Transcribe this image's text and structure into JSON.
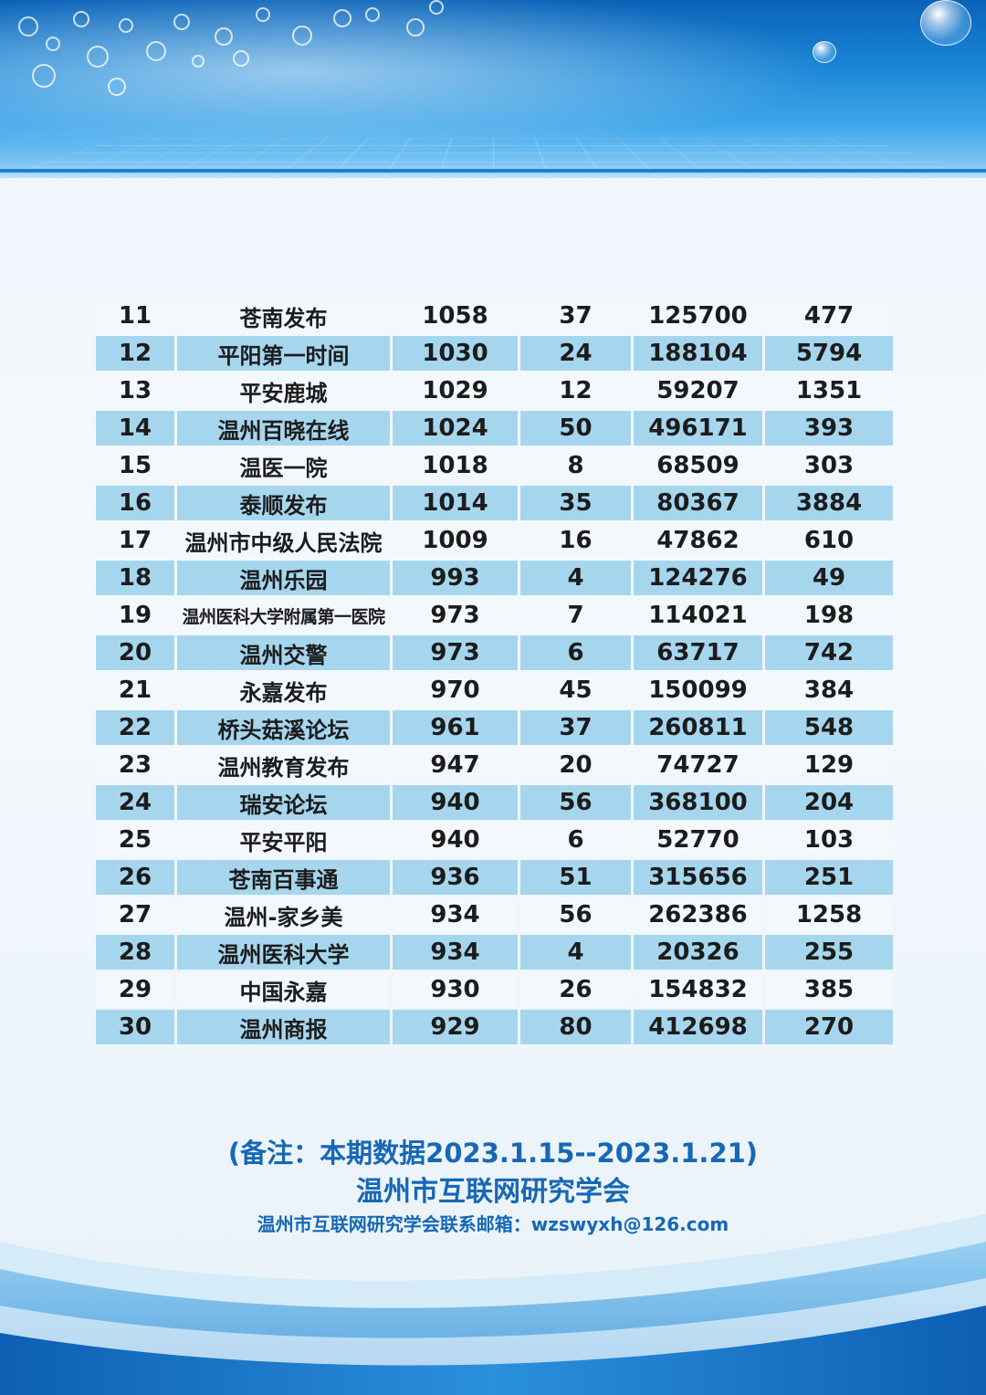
{
  "rows": [
    {
      "rank": "11",
      "name": "苍南发布",
      "c1": "1058",
      "c2": "37",
      "c3": "125700",
      "c4": "477"
    },
    {
      "rank": "12",
      "name": "平阳第一时间",
      "c1": "1030",
      "c2": "24",
      "c3": "188104",
      "c4": "5794"
    },
    {
      "rank": "13",
      "name": "平安鹿城",
      "c1": "1029",
      "c2": "12",
      "c3": "59207",
      "c4": "1351"
    },
    {
      "rank": "14",
      "name": "温州百晓在线",
      "c1": "1024",
      "c2": "50",
      "c3": "496171",
      "c4": "393"
    },
    {
      "rank": "15",
      "name": "温医一院",
      "c1": "1018",
      "c2": "8",
      "c3": "68509",
      "c4": "303"
    },
    {
      "rank": "16",
      "name": "泰顺发布",
      "c1": "1014",
      "c2": "35",
      "c3": "80367",
      "c4": "3884"
    },
    {
      "rank": "17",
      "name": "温州市中级人民法院",
      "c1": "1009",
      "c2": "16",
      "c3": "47862",
      "c4": "610"
    },
    {
      "rank": "18",
      "name": "温州乐园",
      "c1": "993",
      "c2": "4",
      "c3": "124276",
      "c4": "49"
    },
    {
      "rank": "19",
      "name": "温州医科大学附属第一医院",
      "c1": "973",
      "c2": "7",
      "c3": "114021",
      "c4": "198"
    },
    {
      "rank": "20",
      "name": "温州交警",
      "c1": "973",
      "c2": "6",
      "c3": "63717",
      "c4": "742"
    },
    {
      "rank": "21",
      "name": "永嘉发布",
      "c1": "970",
      "c2": "45",
      "c3": "150099",
      "c4": "384"
    },
    {
      "rank": "22",
      "name": "桥头菇溪论坛",
      "c1": "961",
      "c2": "37",
      "c3": "260811",
      "c4": "548"
    },
    {
      "rank": "23",
      "name": "温州教育发布",
      "c1": "947",
      "c2": "20",
      "c3": "74727",
      "c4": "129"
    },
    {
      "rank": "24",
      "name": "瑞安论坛",
      "c1": "940",
      "c2": "56",
      "c3": "368100",
      "c4": "204"
    },
    {
      "rank": "25",
      "name": "平安平阳",
      "c1": "940",
      "c2": "6",
      "c3": "52770",
      "c4": "103"
    },
    {
      "rank": "26",
      "name": "苍南百事通",
      "c1": "936",
      "c2": "51",
      "c3": "315656",
      "c4": "251"
    },
    {
      "rank": "27",
      "name": "温州-家乡美",
      "c1": "934",
      "c2": "56",
      "c3": "262386",
      "c4": "1258"
    },
    {
      "rank": "28",
      "name": "温州医科大学",
      "c1": "934",
      "c2": "4",
      "c3": "20326",
      "c4": "255"
    },
    {
      "rank": "29",
      "name": "中国永嘉",
      "c1": "930",
      "c2": "26",
      "c3": "154832",
      "c4": "385"
    },
    {
      "rank": "30",
      "name": "温州商报",
      "c1": "929",
      "c2": "80",
      "c3": "412698",
      "c4": "270"
    }
  ],
  "footer": {
    "note": "(备注：本期数据2023.1.15--2023.1.21)",
    "org": "温州市互联网研究学会",
    "email": "温州市互联网研究学会联系邮箱：wzswyxh@126.com"
  },
  "colors": {
    "header_blue": "#1a86d6",
    "row_light": "#f3f8fd",
    "row_blue": "#a6d6ee",
    "note_text": "#1668b5"
  }
}
